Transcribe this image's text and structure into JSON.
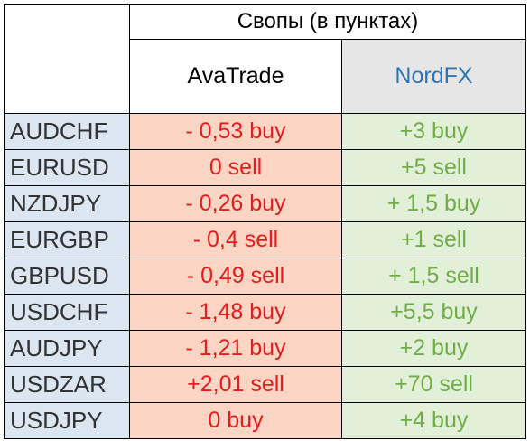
{
  "header": {
    "title": "Свопы (в пунктах)",
    "columns": [
      "AvaTrade",
      "NordFX"
    ]
  },
  "table": {
    "rows": [
      [
        "AUDCHF",
        "- 0,53 buy",
        "+3 buy"
      ],
      [
        "EURUSD",
        "0 sell",
        "+5 sell"
      ],
      [
        "NZDJPY",
        "- 0,26 buy",
        "+ 1,5 buy"
      ],
      [
        "EURGBP",
        "- 0,4 sell",
        "+1 sell"
      ],
      [
        "GBPUSD",
        "- 0,49 sell",
        "+ 1,5 sell"
      ],
      [
        "USDCHF",
        "- 1,48 buy",
        "+5,5 buy"
      ],
      [
        "AUDJPY",
        "- 1,21 buy",
        "+2 buy"
      ],
      [
        "USDZAR",
        "+2,01 sell",
        "+70 sell"
      ],
      [
        "USDJPY",
        "0 buy",
        "+4 buy"
      ]
    ]
  }
}
